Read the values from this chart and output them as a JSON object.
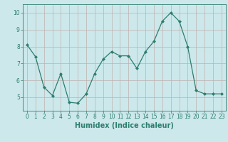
{
  "x": [
    0,
    1,
    2,
    3,
    4,
    5,
    6,
    7,
    8,
    9,
    10,
    11,
    12,
    13,
    14,
    15,
    16,
    17,
    18,
    19,
    20,
    21,
    22,
    23
  ],
  "y": [
    8.1,
    7.4,
    5.6,
    5.1,
    6.4,
    4.7,
    4.65,
    5.2,
    6.4,
    7.25,
    7.7,
    7.45,
    7.45,
    6.7,
    7.7,
    8.3,
    9.5,
    10.0,
    9.5,
    8.0,
    5.4,
    5.2,
    5.2,
    5.2
  ],
  "line_color": "#2e7d6e",
  "marker": "D",
  "marker_size": 2.0,
  "bg_color": "#cce8eb",
  "grid_color": "#c0b0b0",
  "xlabel": "Humidex (Indice chaleur)",
  "ylim": [
    4.2,
    10.5
  ],
  "xlim": [
    -0.5,
    23.5
  ],
  "yticks": [
    5,
    6,
    7,
    8,
    9,
    10
  ],
  "xticks": [
    0,
    1,
    2,
    3,
    4,
    5,
    6,
    7,
    8,
    9,
    10,
    11,
    12,
    13,
    14,
    15,
    16,
    17,
    18,
    19,
    20,
    21,
    22,
    23
  ],
  "tick_fontsize": 5.5,
  "xlabel_fontsize": 7.0
}
